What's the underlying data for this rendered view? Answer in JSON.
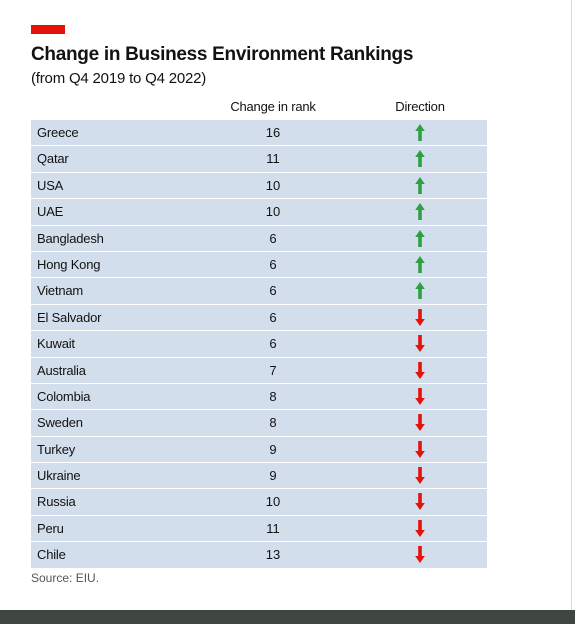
{
  "chart_data": {
    "type": "table",
    "title": "Change in Business Environment Rankings",
    "subtitle": "(from Q4 2019 to Q4 2022)",
    "columns": [
      "Change in rank",
      "Direction"
    ],
    "rows": [
      {
        "country": "Greece",
        "change": "16",
        "direction": "up"
      },
      {
        "country": "Qatar",
        "change": "11",
        "direction": "up"
      },
      {
        "country": "USA",
        "change": "10",
        "direction": "up"
      },
      {
        "country": "UAE",
        "change": "10",
        "direction": "up"
      },
      {
        "country": "Bangladesh",
        "change": "6",
        "direction": "up"
      },
      {
        "country": "Hong Kong",
        "change": "6",
        "direction": "up"
      },
      {
        "country": "Vietnam",
        "change": "6",
        "direction": "up"
      },
      {
        "country": "El Salvador",
        "change": "6",
        "direction": "down"
      },
      {
        "country": "Kuwait",
        "change": "6",
        "direction": "down"
      },
      {
        "country": "Australia",
        "change": "7",
        "direction": "down"
      },
      {
        "country": "Colombia",
        "change": "8",
        "direction": "down"
      },
      {
        "country": "Sweden",
        "change": "8",
        "direction": "down"
      },
      {
        "country": "Turkey",
        "change": "9",
        "direction": "down"
      },
      {
        "country": "Ukraine",
        "change": "9",
        "direction": "down"
      },
      {
        "country": "Russia",
        "change": "10",
        "direction": "down"
      },
      {
        "country": "Peru",
        "change": "11",
        "direction": "down"
      },
      {
        "country": "Chile",
        "change": "13",
        "direction": "down"
      }
    ],
    "source": "Source: EIU."
  },
  "colors": {
    "accent": "#e3120b",
    "row_bg": "#d3deec",
    "up": "#2ea043",
    "down": "#e3120b"
  },
  "icons": {
    "up": "arrow-up-icon",
    "down": "arrow-down-icon"
  }
}
